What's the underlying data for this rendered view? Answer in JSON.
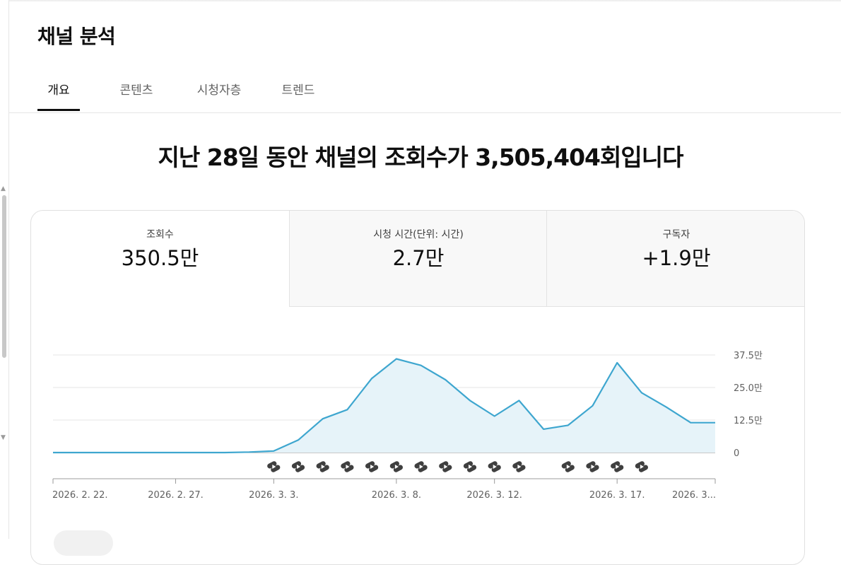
{
  "page": {
    "title": "채널 분석"
  },
  "tabs": [
    {
      "label": "개요",
      "active": true
    },
    {
      "label": "콘텐츠",
      "active": false
    },
    {
      "label": "시청자층",
      "active": false
    },
    {
      "label": "트렌드",
      "active": false
    }
  ],
  "headline": "지난 28일 동안 채널의 조회수가 3,505,404회입니다",
  "metrics": [
    {
      "label": "조회수",
      "value": "350.5만",
      "selected": true
    },
    {
      "label": "시청 시간(단위: 시간)",
      "value": "2.7만",
      "selected": false
    },
    {
      "label": "구독자",
      "value": "+1.9만",
      "selected": false
    }
  ],
  "colors": {
    "line": "#3ea6cf",
    "fill": "#e6f3f9",
    "grid": "#e5e5e5",
    "shorts_icon": "#3f3f3f"
  },
  "chart_data": {
    "type": "area",
    "x": [
      "2026. 2. 22.",
      "2026. 2. 23.",
      "2026. 2. 24.",
      "2026. 2. 25.",
      "2026. 2. 26.",
      "2026. 2. 27.",
      "2026. 2. 28.",
      "2026. 3. 1.",
      "2026. 3. 2.",
      "2026. 3. 3.",
      "2026. 3. 4.",
      "2026. 3. 5.",
      "2026. 3. 6.",
      "2026. 3. 7.",
      "2026. 3. 8.",
      "2026. 3. 9.",
      "2026. 3. 10.",
      "2026. 3. 11.",
      "2026. 3. 12.",
      "2026. 3. 13.",
      "2026. 3. 14.",
      "2026. 3. 15.",
      "2026. 3. 16.",
      "2026. 3. 17.",
      "2026. 3. 18.",
      "2026. 3. 19.",
      "2026. 3. 20.",
      "2026. 3. 21."
    ],
    "series": [
      {
        "values": [
          0,
          0,
          0,
          0,
          0,
          0,
          0,
          0,
          0.2,
          0.6,
          4.8,
          13,
          16.5,
          28.5,
          36,
          33.5,
          28,
          20,
          14,
          20,
          9,
          10.5,
          18,
          34.5,
          23,
          17.5,
          11.5,
          11.5
        ]
      }
    ],
    "x_tick_labels": [
      "2026. 2. 22.",
      "2026. 2. 27.",
      "2026. 3. 3.",
      "2026. 3. 8.",
      "2026. 3. 12.",
      "2026. 3. 17.",
      "2026. 3..."
    ],
    "x_tick_indices": [
      0,
      5,
      9,
      14,
      18,
      23,
      27
    ],
    "y_tick_labels": [
      "0",
      "12.5만",
      "25.0만",
      "37.5만"
    ],
    "y_ticks": [
      0,
      12.5,
      25,
      37.5
    ],
    "ylim": [
      0,
      37.5
    ],
    "y_unit": "만",
    "grid": true,
    "shorts_marker_indices": [
      9,
      10,
      11,
      12,
      13,
      14,
      15,
      16,
      17,
      18,
      19,
      21,
      22,
      23,
      24
    ]
  }
}
